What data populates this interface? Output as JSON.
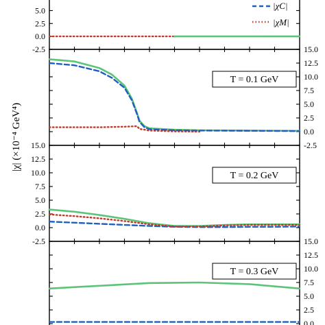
{
  "chart_data": {
    "type": "line",
    "ylabel": "|χ| (×10⁻⁴ GeV⁴)",
    "yticks": [
      "15.0",
      "12.5",
      "10.0",
      "7.5",
      "5.0",
      "2.5",
      "0.0",
      "-2.5"
    ],
    "top_ticks": [
      "5.0",
      "2.5",
      "0.0",
      "-2.5"
    ],
    "ylim": [
      -2.5,
      15
    ],
    "xlim": [
      0,
      1
    ],
    "legend": [
      {
        "label": "|χC|",
        "style": "dashed",
        "color": "#1f5fbf"
      },
      {
        "label": "|χM|",
        "style": "dotted",
        "color": "#c0392b"
      }
    ],
    "colors": {
      "chi": "#5cc478",
      "chi_c": "#1f5fbf",
      "chi_m": "#c0392b"
    },
    "panels": [
      {
        "name": "top",
        "label": "",
        "series": [
          {
            "key": "chi_m",
            "style": "dotted",
            "x": [
              0.0,
              0.5
            ],
            "y": [
              0.0,
              0.0
            ]
          },
          {
            "key": "chi",
            "style": "solid",
            "x": [
              0.5,
              1.0
            ],
            "y": [
              0.0,
              0.0
            ]
          }
        ]
      },
      {
        "name": "T01",
        "label": "T = 0.1 GeV",
        "series": [
          {
            "key": "chi",
            "style": "solid",
            "x": [
              0.0,
              0.1,
              0.2,
              0.25,
              0.3,
              0.33,
              0.35,
              0.36,
              0.38,
              0.4,
              0.5,
              0.6,
              0.8,
              1.0
            ],
            "y": [
              13.2,
              12.8,
              11.6,
              10.4,
              8.4,
              6.0,
              3.4,
              2.0,
              1.0,
              0.6,
              0.35,
              0.25,
              0.2,
              0.15
            ]
          },
          {
            "key": "chi_c",
            "style": "dashed",
            "x": [
              0.0,
              0.1,
              0.2,
              0.25,
              0.3,
              0.33,
              0.35,
              0.36,
              0.38,
              0.4,
              0.5,
              0.6,
              0.8,
              1.0
            ],
            "y": [
              12.5,
              12.1,
              11.0,
              9.8,
              8.0,
              5.7,
              3.2,
              1.8,
              0.8,
              0.45,
              0.25,
              0.2,
              0.15,
              0.1
            ]
          },
          {
            "key": "chi_m",
            "style": "dotted",
            "x": [
              0.0,
              0.1,
              0.2,
              0.3,
              0.35,
              0.36,
              0.4,
              0.5,
              0.6
            ],
            "y": [
              0.8,
              0.8,
              0.8,
              0.9,
              1.0,
              0.5,
              0.2,
              0.05,
              0.0
            ]
          }
        ]
      },
      {
        "name": "T02",
        "label": "T = 0.2 GeV",
        "series": [
          {
            "key": "chi",
            "style": "solid",
            "x": [
              0.0,
              0.1,
              0.2,
              0.3,
              0.4,
              0.5,
              0.6,
              0.7,
              0.8,
              0.9,
              1.0
            ],
            "y": [
              3.3,
              2.9,
              2.3,
              1.6,
              0.8,
              0.3,
              0.3,
              0.5,
              0.6,
              0.6,
              0.6
            ]
          },
          {
            "key": "chi_c",
            "style": "dashed",
            "x": [
              0.0,
              0.1,
              0.2,
              0.3,
              0.4,
              0.5,
              0.6,
              0.7,
              0.8,
              0.9,
              1.0
            ],
            "y": [
              1.1,
              0.9,
              0.7,
              0.5,
              0.3,
              0.15,
              0.1,
              0.1,
              0.15,
              0.15,
              0.2
            ]
          },
          {
            "key": "chi_m",
            "style": "dotted",
            "x": [
              0.0,
              0.1,
              0.2,
              0.3,
              0.4,
              0.5,
              0.6,
              0.7,
              0.8,
              0.9,
              1.0
            ],
            "y": [
              2.4,
              2.1,
              1.7,
              1.2,
              0.6,
              0.2,
              0.2,
              0.4,
              0.5,
              0.5,
              0.5
            ]
          }
        ]
      },
      {
        "name": "T03",
        "label": "T = 0.3 GeV",
        "series": [
          {
            "key": "chi",
            "style": "solid",
            "x": [
              0.0,
              0.2,
              0.4,
              0.6,
              0.8,
              1.0
            ],
            "y": [
              6.4,
              6.9,
              7.4,
              7.5,
              7.2,
              6.4
            ]
          },
          {
            "key": "chi_c",
            "style": "dashed",
            "x": [
              0.0,
              1.0
            ],
            "y": [
              0.3,
              0.3
            ]
          }
        ]
      }
    ]
  }
}
